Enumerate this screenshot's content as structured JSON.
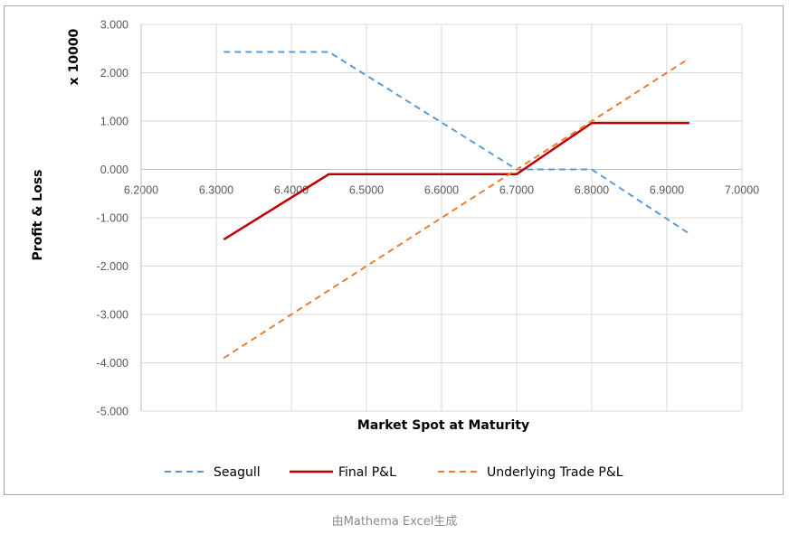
{
  "chart_data": {
    "type": "line",
    "xlabel": "Market Spot at Maturity",
    "ylabel": "Profit & Loss",
    "multiplier_label": "x 10000",
    "xlim": [
      6.2,
      7.0
    ],
    "ylim": [
      -5.0,
      3.0
    ],
    "x_ticks": [
      "6.2000",
      "6.3000",
      "6.4000",
      "6.5000",
      "6.6000",
      "6.7000",
      "6.8000",
      "6.9000",
      "7.0000"
    ],
    "y_ticks": [
      "3.000",
      "2.000",
      "1.000",
      "0.000",
      "-1.000",
      "-2.000",
      "-3.000",
      "-4.000",
      "-5.000"
    ],
    "grid": "vertical and horizontal",
    "legend": "bottom",
    "series": [
      {
        "name": "Seagull",
        "color": "#5b9bd5",
        "style": "dashed",
        "points": [
          [
            6.31,
            2.43
          ],
          [
            6.45,
            2.43
          ],
          [
            6.7,
            0.0
          ],
          [
            6.8,
            0.0
          ],
          [
            6.93,
            -1.33
          ]
        ]
      },
      {
        "name": "Final P&L",
        "color": "#c00000",
        "style": "solid",
        "points": [
          [
            6.31,
            -1.45
          ],
          [
            6.45,
            -0.1
          ],
          [
            6.7,
            -0.1
          ],
          [
            6.8,
            0.96
          ],
          [
            6.93,
            0.96
          ]
        ]
      },
      {
        "name": "Underlying Trade P&L",
        "color": "#ed7d31",
        "style": "dashed",
        "points": [
          [
            6.31,
            -3.9
          ],
          [
            6.93,
            2.3
          ]
        ]
      }
    ]
  },
  "caption": "由Mathema Excel生成"
}
